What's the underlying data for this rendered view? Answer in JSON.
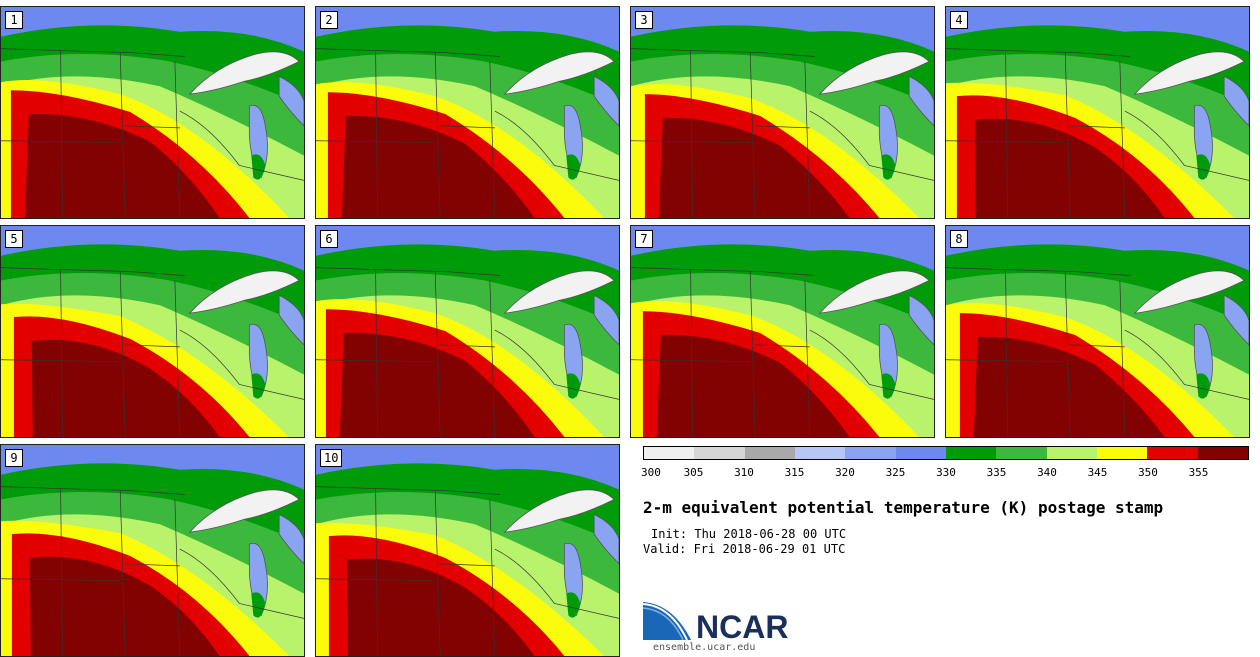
{
  "panels": [
    {
      "label": "1"
    },
    {
      "label": "2"
    },
    {
      "label": "3"
    },
    {
      "label": "4"
    },
    {
      "label": "5"
    },
    {
      "label": "6"
    },
    {
      "label": "7"
    },
    {
      "label": "8"
    },
    {
      "label": "9"
    },
    {
      "label": "10"
    }
  ],
  "colorbar": {
    "colors": [
      "#efefef",
      "#d6d6d6",
      "#a9a9a9",
      "#b6c6f7",
      "#8aa4f2",
      "#6d88ee",
      "#009b08",
      "#3cb83c",
      "#b9f26b",
      "#fbfb0c",
      "#e30000",
      "#820202"
    ],
    "tick_labels": [
      "300",
      "305",
      "310",
      "315",
      "320",
      "325",
      "330",
      "335",
      "340",
      "345",
      "350",
      "355"
    ]
  },
  "title": "2-m equivalent potential temperature (K) postage stamp",
  "init": "Init: Thu 2018-06-28 00 UTC",
  "valid": "Valid: Fri 2018-06-29 01 UTC",
  "logo": {
    "text": "NCAR",
    "url": "ensemble.ucar.edu"
  }
}
